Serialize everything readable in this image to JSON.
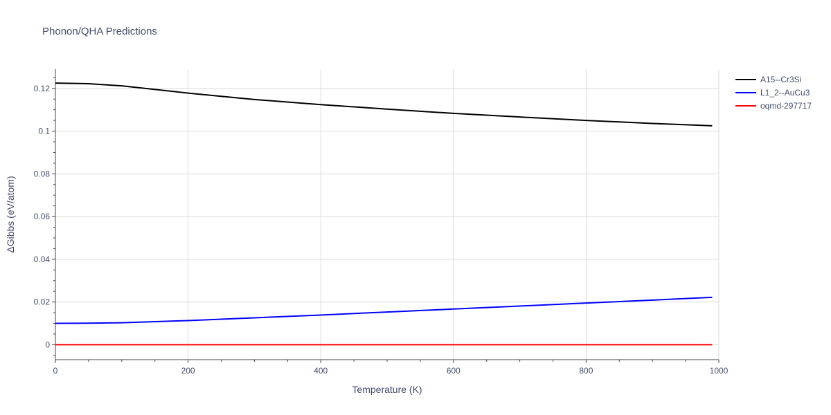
{
  "chart_data": {
    "type": "line",
    "title": "Phonon/QHA Predictions",
    "xlabel": "Temperature (K)",
    "ylabel": "ΔGibbs (eV/atom)",
    "xlim": [
      0,
      1000
    ],
    "ylim": [
      -0.007,
      0.129
    ],
    "x_ticks": [
      0,
      200,
      400,
      600,
      800,
      1000
    ],
    "x_tick_labels": [
      "0",
      "200",
      "400",
      "600",
      "800",
      "1000"
    ],
    "y_ticks": [
      0,
      0.02,
      0.04,
      0.06,
      0.08,
      0.1,
      0.12
    ],
    "y_tick_labels": [
      "0",
      "0.02",
      "0.04",
      "0.06",
      "0.08",
      "0.1",
      "0.12"
    ],
    "grid": true,
    "legend_position": "top-right",
    "series": [
      {
        "name": "A15--Cr3Si",
        "color": "#000000",
        "x": [
          0,
          50,
          100,
          200,
          300,
          400,
          500,
          600,
          700,
          800,
          900,
          990
        ],
        "y": [
          0.1225,
          0.1222,
          0.1212,
          0.1178,
          0.1148,
          0.1124,
          0.1103,
          0.1083,
          0.1066,
          0.105,
          0.1036,
          0.1025
        ]
      },
      {
        "name": "L1_2--AuCu3",
        "color": "#0000ff",
        "x": [
          0,
          50,
          100,
          200,
          300,
          400,
          500,
          600,
          700,
          800,
          900,
          990
        ],
        "y": [
          0.01,
          0.0101,
          0.0103,
          0.0113,
          0.0126,
          0.0139,
          0.0153,
          0.0167,
          0.0181,
          0.0195,
          0.0209,
          0.0222
        ]
      },
      {
        "name": "oqmd-297717",
        "color": "#ff0000",
        "x": [
          0,
          990
        ],
        "y": [
          0,
          0
        ]
      }
    ]
  }
}
